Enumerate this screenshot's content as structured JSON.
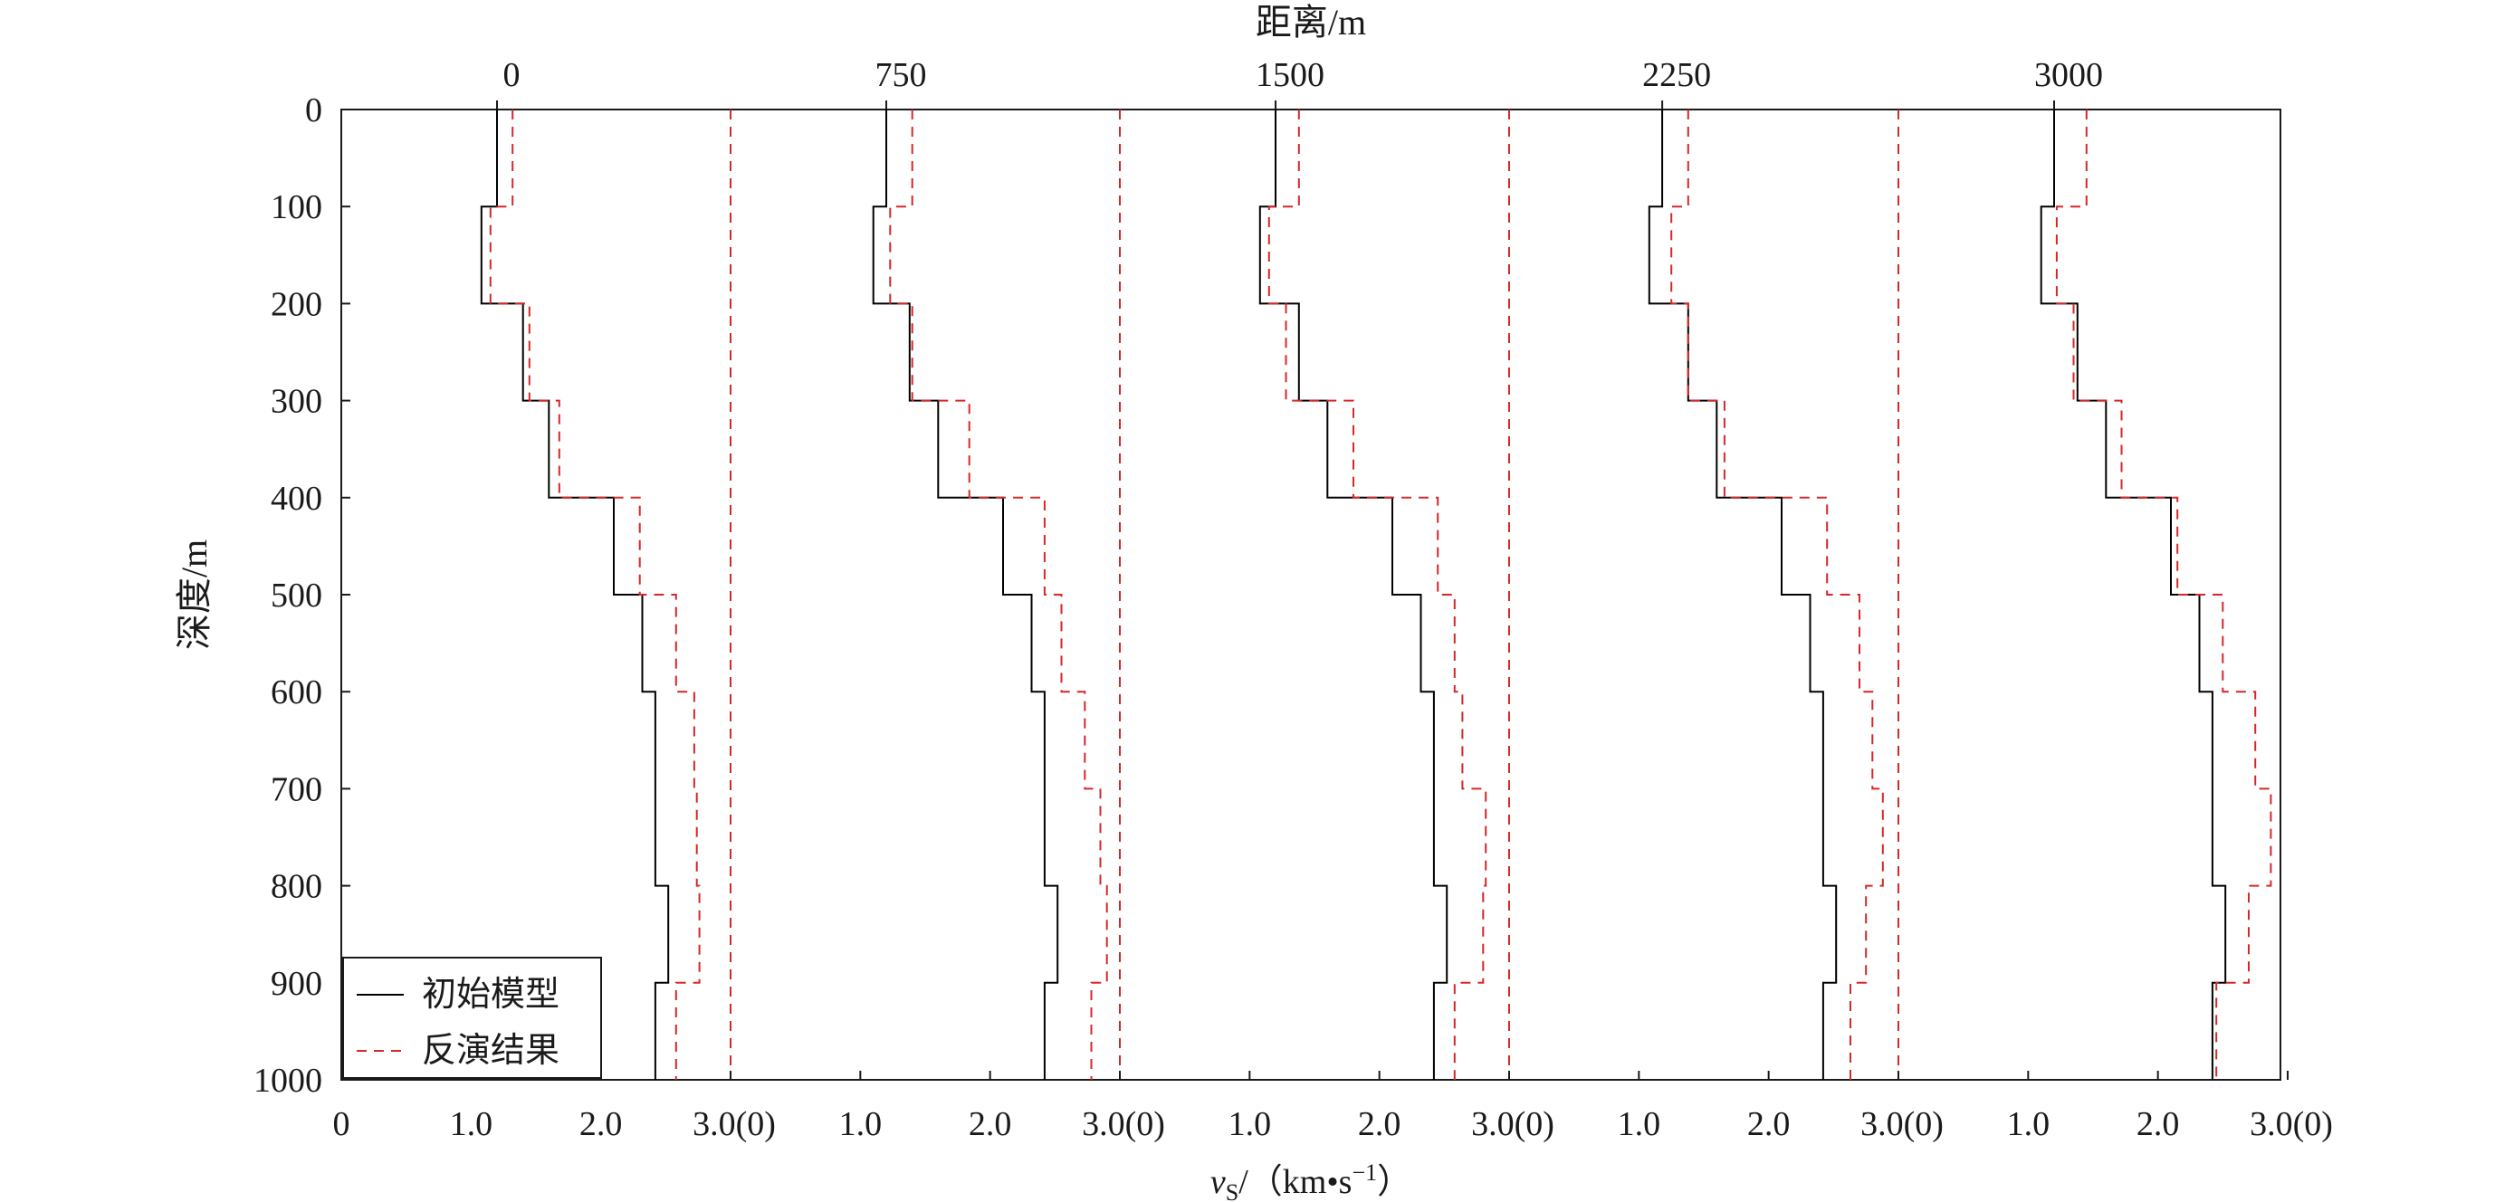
{
  "chart_data": {
    "type": "line",
    "title": "",
    "top_axis": {
      "label": "距离/m",
      "tick_labels": [
        "0",
        "750",
        "1500",
        "2250",
        "3000"
      ]
    },
    "ylabel": "深度/m",
    "ylim": [
      0,
      1000
    ],
    "y_inverted": true,
    "y_ticks": [
      0,
      100,
      200,
      300,
      400,
      500,
      600,
      700,
      800,
      900,
      1000
    ],
    "xlabel": {
      "var": "v",
      "sub": "S",
      "mid": "/（km•s",
      "sup": "−1",
      "end": "）"
    },
    "x_tick_labels": [
      [
        "0",
        "1.0",
        "2.0",
        "3.0(0)"
      ],
      [
        "1.0",
        "2.0",
        "3.0(0)"
      ],
      [
        "1.0",
        "2.0",
        "3.0(0)"
      ],
      [
        "1.0",
        "2.0",
        "3.0(0)"
      ],
      [
        "1.0",
        "2.0",
        "3.0(0)"
      ]
    ],
    "panel_xlim": [
      0,
      3
    ],
    "grid": false,
    "legend": {
      "position": "bottom-left",
      "entries": [
        "初始模型",
        "反演结果"
      ]
    },
    "series_colors": {
      "initial": "#000000",
      "inversion": "#d62728",
      "divider": "#d62728"
    },
    "layer_depths": [
      0,
      100,
      200,
      300,
      400,
      500,
      600,
      700,
      800,
      900,
      1000
    ],
    "panels": [
      {
        "distance": "0",
        "initial_model": [
          1.2,
          1.08,
          1.4,
          1.6,
          2.1,
          2.32,
          2.42,
          2.42,
          2.52,
          2.42
        ],
        "inversion_result": [
          1.32,
          1.15,
          1.45,
          1.68,
          2.3,
          2.58,
          2.72,
          2.74,
          2.76,
          2.58
        ]
      },
      {
        "distance": "750",
        "initial_model": [
          1.2,
          1.1,
          1.38,
          1.6,
          2.1,
          2.32,
          2.42,
          2.42,
          2.52,
          2.42
        ],
        "inversion_result": [
          1.4,
          1.23,
          1.4,
          1.84,
          2.42,
          2.55,
          2.73,
          2.85,
          2.9,
          2.78
        ]
      },
      {
        "distance": "1500",
        "initial_model": [
          1.2,
          1.08,
          1.38,
          1.6,
          2.1,
          2.32,
          2.42,
          2.42,
          2.52,
          2.42
        ],
        "inversion_result": [
          1.38,
          1.15,
          1.28,
          1.8,
          2.45,
          2.58,
          2.64,
          2.82,
          2.8,
          2.58
        ]
      },
      {
        "distance": "2250",
        "initial_model": [
          1.18,
          1.08,
          1.38,
          1.6,
          2.1,
          2.32,
          2.42,
          2.42,
          2.52,
          2.42
        ],
        "inversion_result": [
          1.38,
          1.25,
          1.38,
          1.66,
          2.45,
          2.7,
          2.8,
          2.88,
          2.75,
          2.63
        ]
      },
      {
        "distance": "3000",
        "initial_model": [
          1.2,
          1.1,
          1.38,
          1.6,
          2.1,
          2.32,
          2.42,
          2.42,
          2.52,
          2.42
        ],
        "inversion_result": [
          1.45,
          1.22,
          1.35,
          1.72,
          2.15,
          2.5,
          2.75,
          2.87,
          2.7,
          2.45
        ]
      }
    ]
  }
}
